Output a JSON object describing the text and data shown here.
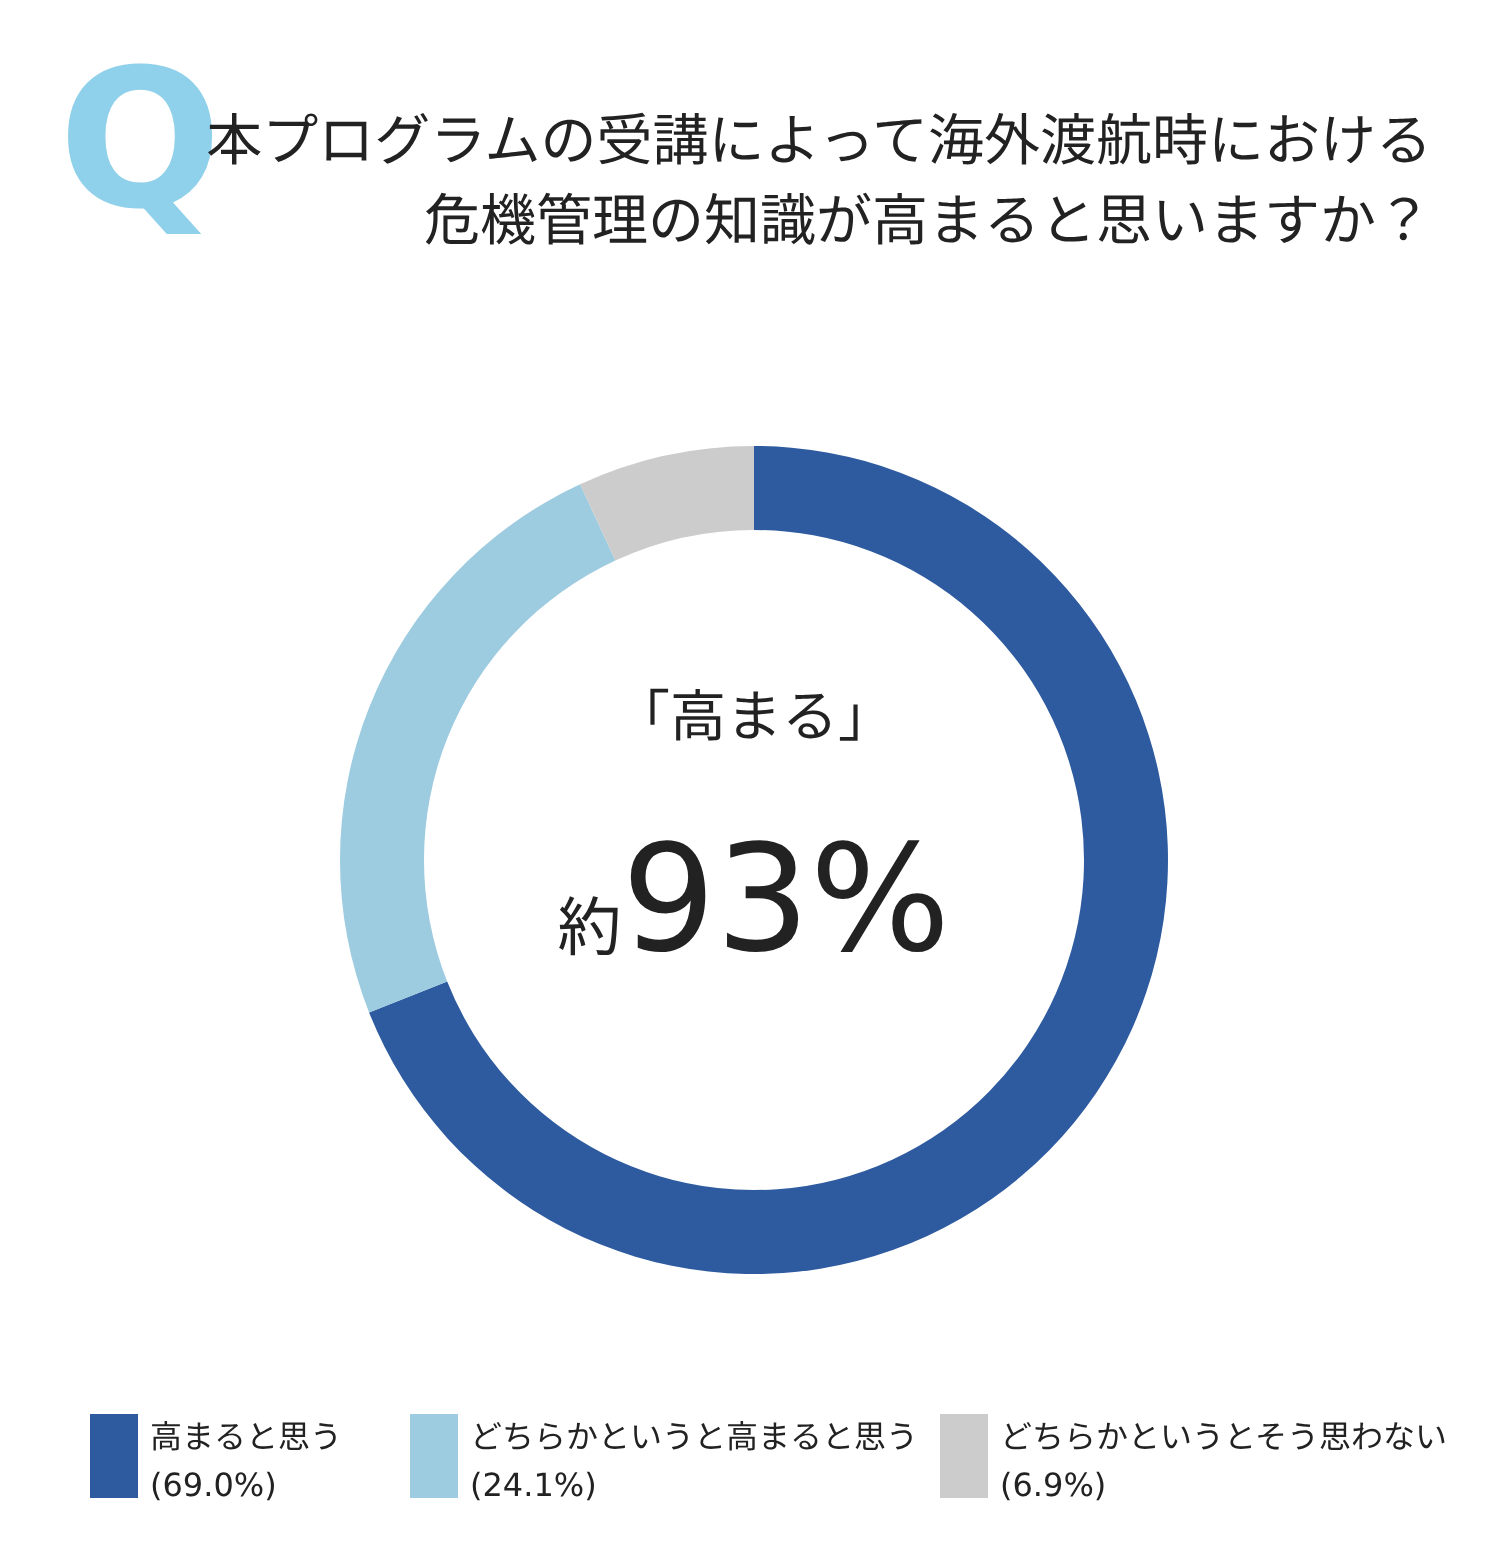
{
  "chart_data": {
    "type": "donut",
    "title": "本プログラムの受講によって海外渡航時における危機管理の知識が高まると思いますか？",
    "categories": [
      "高まると思う",
      "どちらかというと高まると思う",
      "どちらかというとそう思わない"
    ],
    "values": [
      69.0,
      24.1,
      6.9
    ],
    "value_labels": [
      "(69.0%)",
      "(24.1%)",
      "(6.9%)"
    ],
    "colors": [
      "#2e5b9f",
      "#9dcbe0",
      "#cccccc"
    ],
    "annotations": [
      "Q",
      "「高まる」",
      "約93%"
    ],
    "legend": "bottom"
  }
}
